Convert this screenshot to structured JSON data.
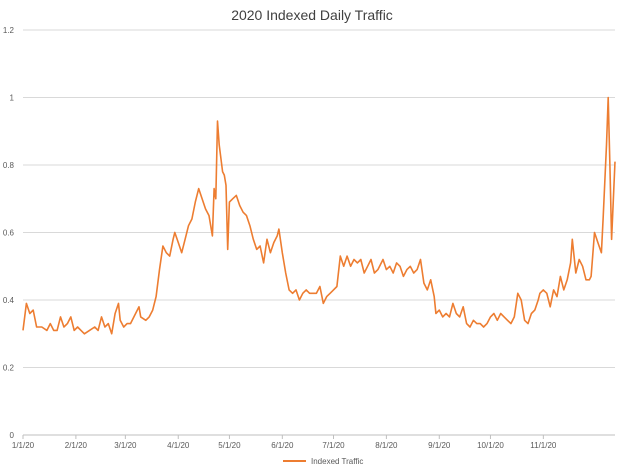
{
  "chart_data": {
    "type": "line",
    "title": "2020 Indexed Daily Traffic",
    "xlabel": "",
    "ylabel": "",
    "ylim": [
      0,
      1.2
    ],
    "yticks": [
      "0",
      "0.2",
      "0.4",
      "0.6",
      "0.8",
      "1",
      "1.2"
    ],
    "x_tick_labels": [
      "1/1/20",
      "2/1/20",
      "3/1/20",
      "4/1/20",
      "5/1/20",
      "6/1/20",
      "7/1/20",
      "8/1/20",
      "9/1/20",
      "10/1/20",
      "11/1/20"
    ],
    "grid": true,
    "legend_position": "bottom",
    "series": [
      {
        "name": "Indexed Traffic",
        "color": "#ED7D31",
        "points": [
          [
            1,
            0.31
          ],
          [
            3,
            0.39
          ],
          [
            5,
            0.36
          ],
          [
            7,
            0.37
          ],
          [
            9,
            0.32
          ],
          [
            12,
            0.32
          ],
          [
            15,
            0.31
          ],
          [
            17,
            0.33
          ],
          [
            19,
            0.31
          ],
          [
            21,
            0.31
          ],
          [
            23,
            0.35
          ],
          [
            25,
            0.32
          ],
          [
            27,
            0.33
          ],
          [
            29,
            0.35
          ],
          [
            31,
            0.31
          ],
          [
            33,
            0.32
          ],
          [
            35,
            0.31
          ],
          [
            37,
            0.3
          ],
          [
            40,
            0.31
          ],
          [
            43,
            0.32
          ],
          [
            45,
            0.31
          ],
          [
            47,
            0.35
          ],
          [
            49,
            0.32
          ],
          [
            51,
            0.33
          ],
          [
            53,
            0.3
          ],
          [
            55,
            0.36
          ],
          [
            57,
            0.39
          ],
          [
            58,
            0.34
          ],
          [
            60,
            0.32
          ],
          [
            62,
            0.33
          ],
          [
            64,
            0.33
          ],
          [
            66,
            0.35
          ],
          [
            68,
            0.37
          ],
          [
            69,
            0.38
          ],
          [
            70,
            0.35
          ],
          [
            73,
            0.34
          ],
          [
            75,
            0.35
          ],
          [
            77,
            0.37
          ],
          [
            79,
            0.41
          ],
          [
            81,
            0.49
          ],
          [
            83,
            0.56
          ],
          [
            85,
            0.54
          ],
          [
            87,
            0.53
          ],
          [
            89,
            0.58
          ],
          [
            90,
            0.6
          ],
          [
            92,
            0.57
          ],
          [
            94,
            0.54
          ],
          [
            96,
            0.58
          ],
          [
            98,
            0.62
          ],
          [
            100,
            0.64
          ],
          [
            102,
            0.69
          ],
          [
            104,
            0.73
          ],
          [
            106,
            0.7
          ],
          [
            108,
            0.67
          ],
          [
            110,
            0.65
          ],
          [
            112,
            0.59
          ],
          [
            113,
            0.73
          ],
          [
            114,
            0.7
          ],
          [
            115,
            0.93
          ],
          [
            116,
            0.86
          ],
          [
            118,
            0.78
          ],
          [
            119,
            0.77
          ],
          [
            120,
            0.74
          ],
          [
            121,
            0.55
          ],
          [
            122,
            0.69
          ],
          [
            124,
            0.7
          ],
          [
            126,
            0.71
          ],
          [
            128,
            0.68
          ],
          [
            130,
            0.66
          ],
          [
            132,
            0.65
          ],
          [
            134,
            0.62
          ],
          [
            136,
            0.58
          ],
          [
            138,
            0.55
          ],
          [
            140,
            0.56
          ],
          [
            142,
            0.51
          ],
          [
            144,
            0.58
          ],
          [
            146,
            0.54
          ],
          [
            148,
            0.57
          ],
          [
            150,
            0.59
          ],
          [
            151,
            0.61
          ],
          [
            153,
            0.54
          ],
          [
            155,
            0.48
          ],
          [
            157,
            0.43
          ],
          [
            159,
            0.42
          ],
          [
            161,
            0.43
          ],
          [
            163,
            0.4
          ],
          [
            165,
            0.42
          ],
          [
            167,
            0.43
          ],
          [
            169,
            0.42
          ],
          [
            171,
            0.42
          ],
          [
            173,
            0.42
          ],
          [
            175,
            0.44
          ],
          [
            177,
            0.39
          ],
          [
            179,
            0.41
          ],
          [
            181,
            0.42
          ],
          [
            183,
            0.43
          ],
          [
            185,
            0.44
          ],
          [
            187,
            0.53
          ],
          [
            189,
            0.5
          ],
          [
            191,
            0.53
          ],
          [
            193,
            0.5
          ],
          [
            195,
            0.52
          ],
          [
            197,
            0.51
          ],
          [
            199,
            0.52
          ],
          [
            201,
            0.48
          ],
          [
            203,
            0.5
          ],
          [
            205,
            0.52
          ],
          [
            207,
            0.48
          ],
          [
            209,
            0.49
          ],
          [
            211,
            0.51
          ],
          [
            212,
            0.52
          ],
          [
            214,
            0.49
          ],
          [
            216,
            0.5
          ],
          [
            218,
            0.48
          ],
          [
            220,
            0.51
          ],
          [
            222,
            0.5
          ],
          [
            224,
            0.47
          ],
          [
            226,
            0.49
          ],
          [
            228,
            0.5
          ],
          [
            230,
            0.48
          ],
          [
            232,
            0.49
          ],
          [
            234,
            0.52
          ],
          [
            236,
            0.45
          ],
          [
            238,
            0.43
          ],
          [
            240,
            0.46
          ],
          [
            242,
            0.41
          ],
          [
            243,
            0.36
          ],
          [
            245,
            0.37
          ],
          [
            247,
            0.35
          ],
          [
            249,
            0.36
          ],
          [
            251,
            0.35
          ],
          [
            253,
            0.39
          ],
          [
            255,
            0.36
          ],
          [
            257,
            0.35
          ],
          [
            259,
            0.38
          ],
          [
            261,
            0.33
          ],
          [
            263,
            0.32
          ],
          [
            265,
            0.34
          ],
          [
            267,
            0.33
          ],
          [
            269,
            0.33
          ],
          [
            271,
            0.32
          ],
          [
            273,
            0.33
          ],
          [
            275,
            0.35
          ],
          [
            277,
            0.36
          ],
          [
            279,
            0.34
          ],
          [
            281,
            0.36
          ],
          [
            283,
            0.35
          ],
          [
            285,
            0.34
          ],
          [
            287,
            0.33
          ],
          [
            289,
            0.35
          ],
          [
            291,
            0.42
          ],
          [
            293,
            0.4
          ],
          [
            295,
            0.34
          ],
          [
            297,
            0.33
          ],
          [
            299,
            0.36
          ],
          [
            301,
            0.37
          ],
          [
            303,
            0.4
          ],
          [
            304,
            0.42
          ],
          [
            306,
            0.43
          ],
          [
            308,
            0.42
          ],
          [
            310,
            0.38
          ],
          [
            312,
            0.43
          ],
          [
            314,
            0.41
          ],
          [
            316,
            0.47
          ],
          [
            318,
            0.43
          ],
          [
            320,
            0.46
          ],
          [
            322,
            0.51
          ],
          [
            323,
            0.58
          ],
          [
            325,
            0.48
          ],
          [
            327,
            0.52
          ],
          [
            329,
            0.5
          ],
          [
            331,
            0.46
          ],
          [
            333,
            0.46
          ],
          [
            334,
            0.47
          ],
          [
            336,
            0.6
          ],
          [
            338,
            0.57
          ],
          [
            340,
            0.54
          ],
          [
            341,
            0.64
          ],
          [
            343,
            0.86
          ],
          [
            344,
            1.0
          ],
          [
            345,
            0.8
          ],
          [
            346,
            0.58
          ],
          [
            348,
            0.81
          ]
        ]
      }
    ]
  }
}
